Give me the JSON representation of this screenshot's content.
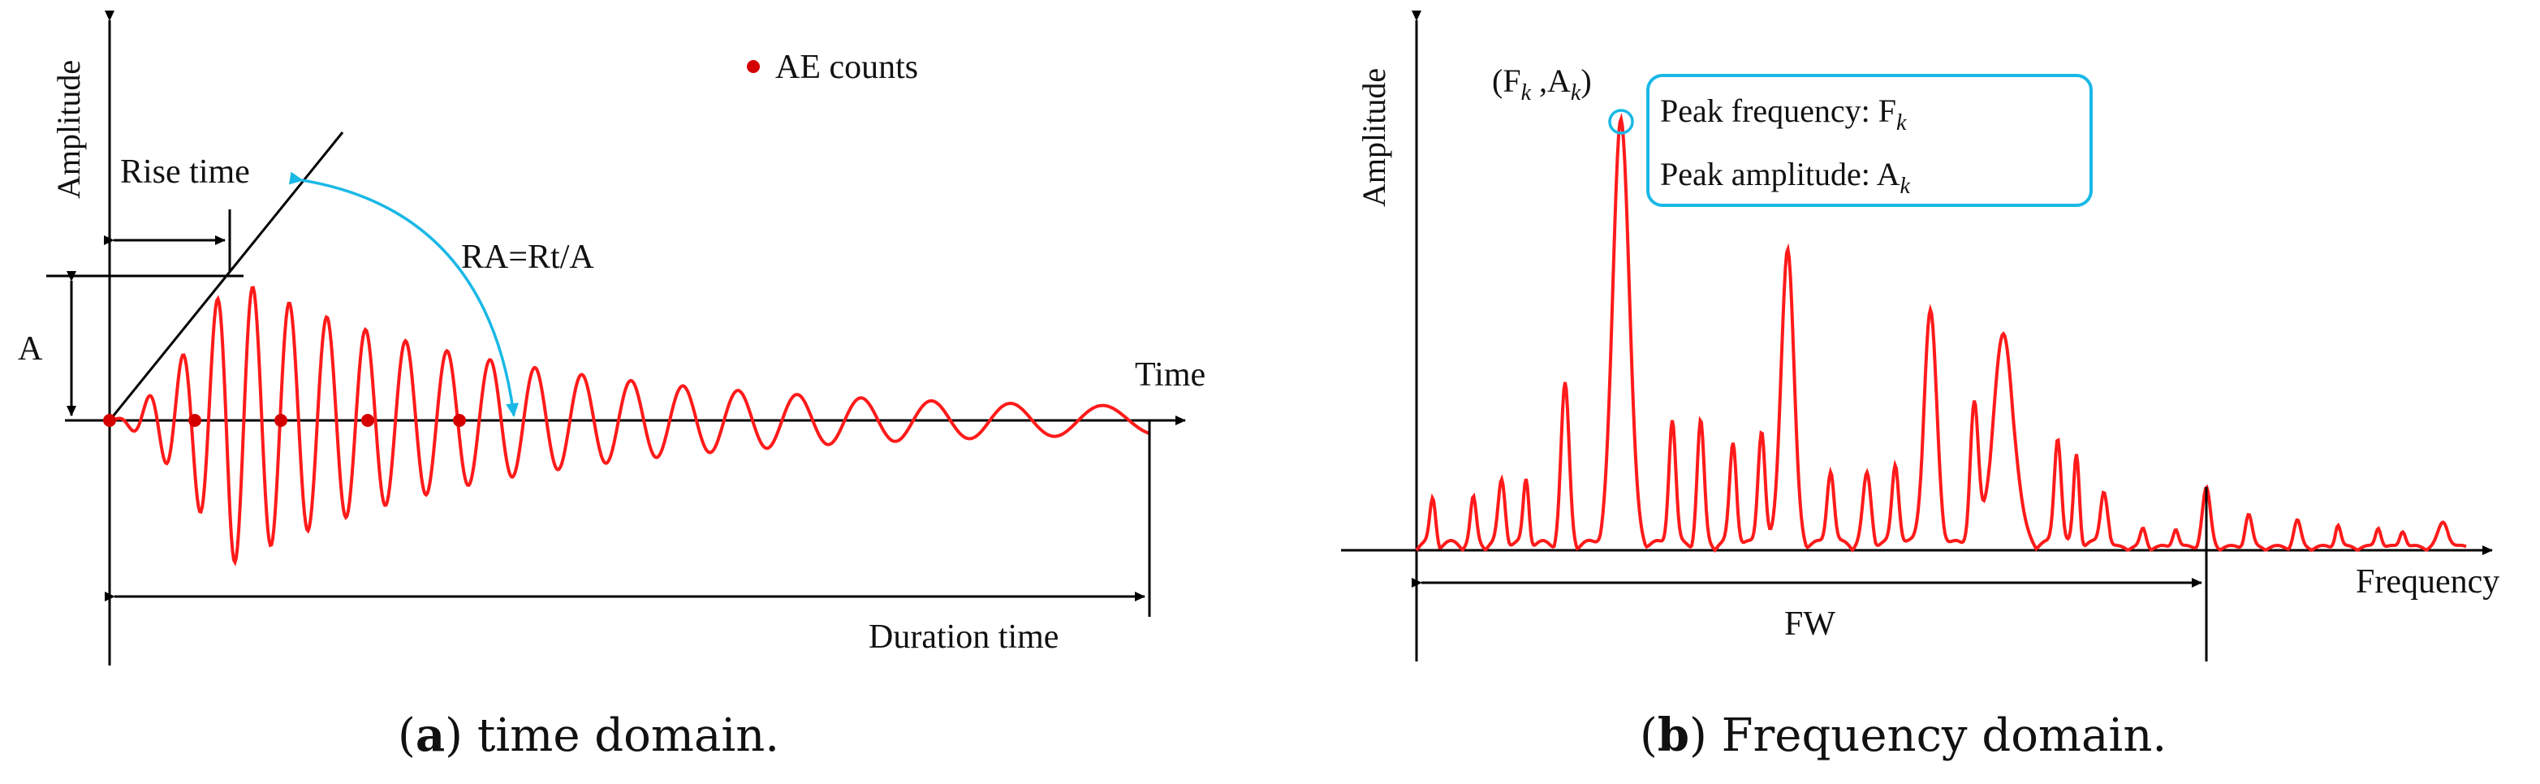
{
  "colors": {
    "signal": "#ff1a1a",
    "axis": "#000000",
    "callout": "#1ab8e6",
    "dot": "#d40000"
  },
  "panel_a": {
    "ylabel": "Amplitude",
    "xlabel": "Time",
    "legend": "AE counts",
    "rise_time": "Rise time",
    "amplitude_symbol": "A",
    "ra_formula": "RA=Rt/A",
    "duration": "Duration time",
    "caption_letter": "a",
    "caption_rest": " time domain.",
    "caption_open": "(",
    "caption_close": ")"
  },
  "panel_b": {
    "ylabel": "Amplitude",
    "xlabel": "Frequency",
    "peak_label_open": "(F",
    "peak_label_sub_f": "k",
    "peak_label_mid": " ,A",
    "peak_label_sub_a": "k",
    "peak_label_close": ")",
    "peak_freq_text": "Peak frequency: F",
    "peak_freq_sub": "k",
    "peak_amp_text": "Peak amplitude: A",
    "peak_amp_sub": "k",
    "fw": "FW",
    "caption_letter": "b",
    "caption_rest": " Frequency domain.",
    "caption_open": "(",
    "caption_close": ")"
  }
}
